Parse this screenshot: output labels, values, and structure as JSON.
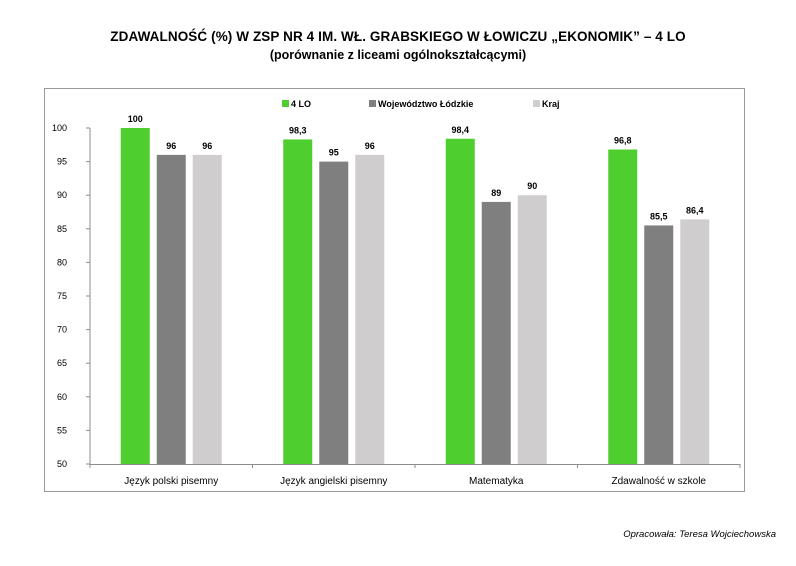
{
  "title": "ZDAWALNOŚĆ (%) W ZSP NR 4 IM. WŁ. GRABSKIEGO W ŁOWICZU „EKONOMIK” – 4 LO",
  "subtitle": "(porównanie z liceami ogólnokształcącymi)",
  "credit": "Opracowała: Teresa Wojciechowska",
  "chart_data": {
    "type": "bar",
    "title": "",
    "xlabel": "",
    "ylabel": "",
    "ylim": [
      50,
      100
    ],
    "yticks": [
      50,
      55,
      60,
      65,
      70,
      75,
      80,
      85,
      90,
      95,
      100
    ],
    "grid": false,
    "legend_position": "top-center",
    "categories": [
      "Język polski pisemny",
      "Język angielski pisemny",
      "Matematyka",
      "Zdawalność w szkole"
    ],
    "series": [
      {
        "name": "4 LO",
        "color": "#4fcf2f",
        "values": [
          100,
          98.3,
          98.4,
          96.8
        ],
        "labels": [
          "100",
          "98,3",
          "98,4",
          "96,8"
        ]
      },
      {
        "name": "Województwo Łódzkie",
        "color": "#7f7f7f",
        "values": [
          96,
          95,
          89,
          85.5
        ],
        "labels": [
          "96",
          "95",
          "89",
          "85,5"
        ]
      },
      {
        "name": "Kraj",
        "color": "#d0cdce",
        "values": [
          96,
          96,
          90,
          86.4
        ],
        "labels": [
          "96",
          "96",
          "90",
          "86,4"
        ]
      }
    ]
  }
}
